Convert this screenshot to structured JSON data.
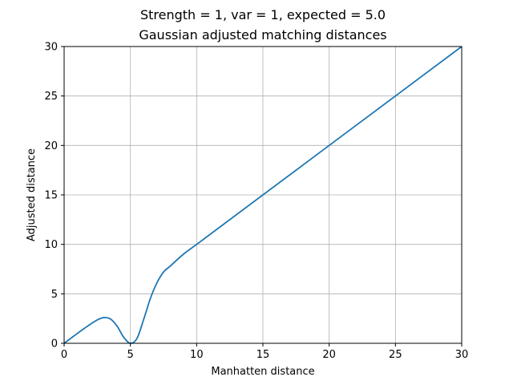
{
  "chart_data": {
    "type": "line",
    "suptitle": "Strength = 1, var = 1, expected = 5.0",
    "title": "Gaussian adjusted matching distances",
    "xlabel": "Manhatten distance",
    "ylabel": "Adjusted distance",
    "xlim": [
      0,
      30
    ],
    "ylim": [
      0,
      30
    ],
    "xticks": [
      0,
      5,
      10,
      15,
      20,
      25,
      30
    ],
    "yticks": [
      0,
      5,
      10,
      15,
      20,
      25,
      30
    ],
    "grid": true,
    "series": [
      {
        "color": "#1f77b4",
        "x": [
          0,
          0.5,
          1,
          1.5,
          2,
          2.5,
          3,
          3.5,
          4,
          4.5,
          5,
          5.5,
          6,
          6.5,
          7,
          7.5,
          8,
          9,
          10,
          12,
          15,
          20,
          25,
          30
        ],
        "y": [
          0,
          0.5,
          1.0,
          1.48,
          1.95,
          2.36,
          2.6,
          2.45,
          1.73,
          0.6,
          0,
          0.5,
          2.4,
          4.5,
          6.1,
          7.2,
          7.8,
          9.0,
          10.0,
          12.0,
          15.0,
          20.0,
          25.0,
          30.0
        ]
      }
    ]
  }
}
